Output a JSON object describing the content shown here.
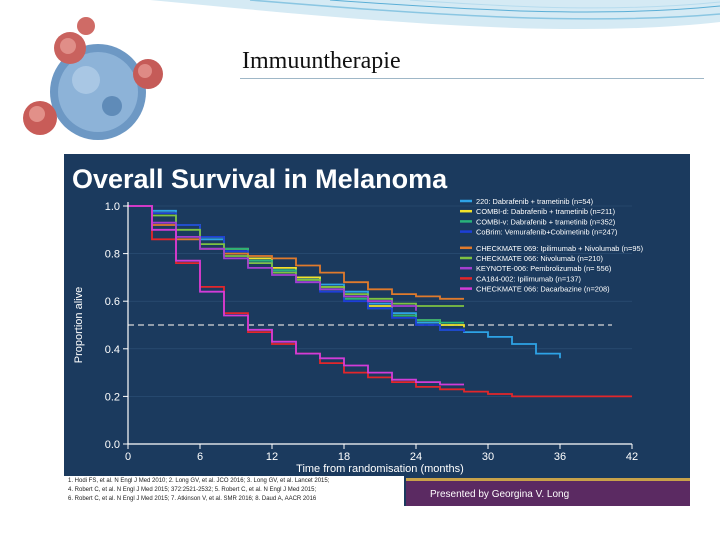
{
  "slide": {
    "title": "Immuuntherapie",
    "footnotes": [
      "1. Hodi FS, et al. N Engl J Med 2010; 2. Long GV, et al. JCO 2016; 3. Long GV, et al. Lancet 2015;",
      "4. Robert C, et al. N Engl J Med 2015; 372:2521-2532; 5. Robert C, et al. N Engl J Med 2015;",
      "6. Robert C, et al. N Engl J Med 2015; 7. Atkinson V, et al. SMR 2016; 8. Daud A, AACR 2016"
    ],
    "presented_by": "Presented by Georgina V. Long"
  },
  "colors": {
    "panel": "#1b3a5e",
    "grid": "#2f5278",
    "text": "#ffffff",
    "dashed": "#d8d8d8"
  },
  "chart_data": {
    "type": "line",
    "title": "Overall Survival in Melanoma",
    "xlabel": "Time from randomisation (months)",
    "ylabel": "Proportion alive",
    "xlim": [
      0,
      42
    ],
    "ylim": [
      0,
      1
    ],
    "xticks": [
      0,
      6,
      12,
      18,
      24,
      30,
      36,
      42
    ],
    "yticks": [
      "0.0",
      "0.2",
      "0.4",
      "0.6",
      "0.8",
      "1.0"
    ],
    "reference_line": 0.5,
    "legend_position": "top-right",
    "series": [
      {
        "name": "220: Dabrafenib + trametinib (n=54)",
        "color": "#2ea3e6",
        "x": [
          0,
          2,
          4,
          6,
          8,
          10,
          12,
          14,
          16,
          18,
          20,
          22,
          24,
          26,
          28,
          30,
          32,
          34,
          36
        ],
        "y": [
          1.0,
          0.98,
          0.92,
          0.86,
          0.8,
          0.76,
          0.73,
          0.7,
          0.67,
          0.64,
          0.59,
          0.55,
          0.51,
          0.48,
          0.47,
          0.45,
          0.42,
          0.38,
          0.36
        ]
      },
      {
        "name": "COMBI-d: Dabrafenib + trametinib (n=211)",
        "color": "#f2e22a",
        "x": [
          0,
          2,
          4,
          6,
          8,
          10,
          12,
          14,
          16,
          18,
          20,
          22,
          24,
          26,
          28
        ],
        "y": [
          1.0,
          0.97,
          0.92,
          0.87,
          0.82,
          0.78,
          0.74,
          0.7,
          0.66,
          0.62,
          0.58,
          0.54,
          0.52,
          0.5,
          0.49
        ]
      },
      {
        "name": "COMBI-v: Dabrafenib + trametinib (n=352)",
        "color": "#28b37a",
        "x": [
          0,
          2,
          4,
          6,
          8,
          10,
          12,
          14,
          16,
          18,
          20,
          22,
          24,
          26,
          28
        ],
        "y": [
          1.0,
          0.97,
          0.92,
          0.87,
          0.82,
          0.77,
          0.73,
          0.69,
          0.65,
          0.61,
          0.57,
          0.54,
          0.52,
          0.51,
          0.51
        ]
      },
      {
        "name": "CoBrim: Vemurafenib+Cobimetinib (n=247)",
        "color": "#1d3fd8",
        "x": [
          0,
          2,
          4,
          6,
          8,
          10,
          12,
          14,
          16,
          18,
          20,
          22,
          24,
          26,
          28
        ],
        "y": [
          1.0,
          0.97,
          0.92,
          0.87,
          0.81,
          0.76,
          0.72,
          0.68,
          0.64,
          0.6,
          0.57,
          0.53,
          0.5,
          0.48,
          0.47
        ]
      },
      {
        "name": "CHECKMATE 069: Ipilimumab + Nivolumab (n=95)",
        "color": "#e07a2c",
        "x": [
          0,
          2,
          4,
          6,
          8,
          10,
          12,
          14,
          16,
          18,
          20,
          22,
          24,
          26,
          28
        ],
        "y": [
          1.0,
          0.92,
          0.86,
          0.82,
          0.8,
          0.79,
          0.78,
          0.75,
          0.72,
          0.68,
          0.65,
          0.63,
          0.62,
          0.61,
          0.61
        ]
      },
      {
        "name": "CHECKMATE 066: Nivolumab (n=210)",
        "color": "#7ec242",
        "x": [
          0,
          2,
          4,
          6,
          8,
          10,
          12,
          14,
          16,
          18,
          20,
          22,
          24,
          26,
          28
        ],
        "y": [
          1.0,
          0.96,
          0.9,
          0.84,
          0.79,
          0.76,
          0.72,
          0.69,
          0.66,
          0.63,
          0.61,
          0.59,
          0.58,
          0.58,
          0.58
        ]
      },
      {
        "name": "KEYNOTE-006: Pembrolizumab (n= 556)",
        "color": "#a43fd0",
        "x": [
          0,
          2,
          4,
          6,
          8,
          10,
          12,
          14,
          16,
          18,
          20,
          22,
          24
        ],
        "y": [
          1.0,
          0.93,
          0.87,
          0.82,
          0.78,
          0.74,
          0.71,
          0.68,
          0.65,
          0.62,
          0.6,
          0.58,
          0.56
        ]
      },
      {
        "name": "CA184-002: Ipilimumab (n=137)",
        "color": "#e3262a",
        "x": [
          0,
          2,
          4,
          6,
          8,
          10,
          12,
          14,
          16,
          18,
          20,
          22,
          24,
          26,
          28,
          30,
          32,
          34,
          36,
          38,
          40,
          42
        ],
        "y": [
          1.0,
          0.86,
          0.76,
          0.66,
          0.55,
          0.47,
          0.42,
          0.38,
          0.34,
          0.3,
          0.28,
          0.26,
          0.24,
          0.23,
          0.22,
          0.21,
          0.2,
          0.2,
          0.2,
          0.2,
          0.2,
          0.2
        ]
      },
      {
        "name": "CHECKMATE 066: Dacarbazine (n=208)",
        "color": "#d23cd8",
        "x": [
          0,
          2,
          4,
          6,
          8,
          10,
          12,
          14,
          16,
          18,
          20,
          22,
          24,
          26,
          28
        ],
        "y": [
          1.0,
          0.9,
          0.77,
          0.64,
          0.54,
          0.48,
          0.43,
          0.38,
          0.36,
          0.33,
          0.3,
          0.27,
          0.26,
          0.25,
          0.25
        ]
      }
    ]
  }
}
